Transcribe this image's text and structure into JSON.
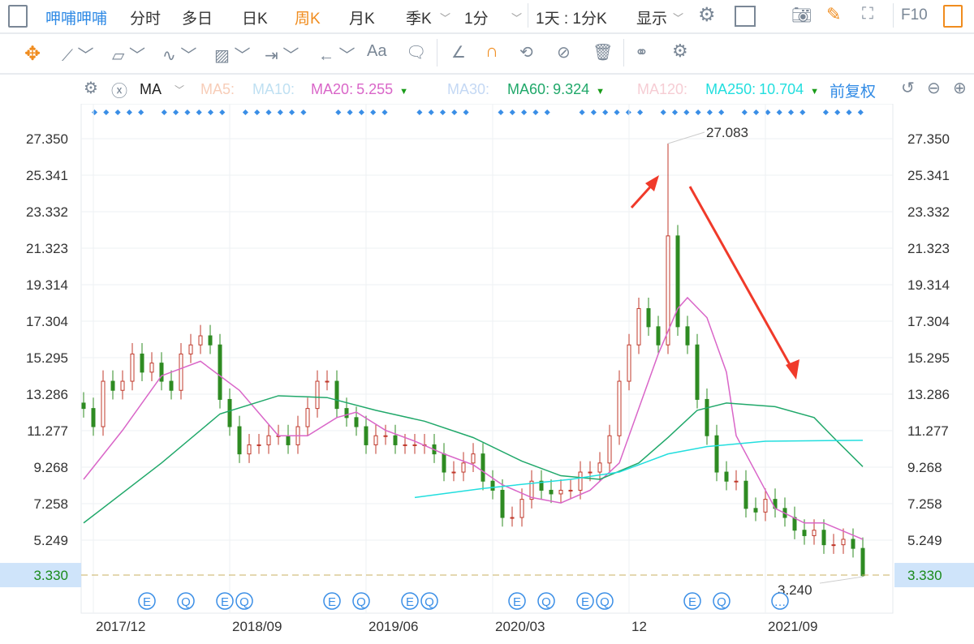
{
  "toolbar": {
    "stock_name": "呷哺呷哺",
    "tabs": [
      {
        "label": "分时"
      },
      {
        "label": "多日"
      },
      {
        "label": "日K"
      },
      {
        "label": "周K",
        "active": true
      },
      {
        "label": "月K"
      },
      {
        "label": "季K"
      }
    ],
    "minute_select": "1分",
    "period_select": "1天 : 1分K",
    "display_select": "显示",
    "f10": "F10",
    "active_color": "#f08c1e",
    "link_color": "#2f8ae5"
  },
  "drawing_tools": [
    "move-icon",
    "line-icon",
    "polygon-icon",
    "wave-icon",
    "fib-icon",
    "range-icon",
    "arrow-icon",
    "text-icon",
    "comment-icon",
    "angle-icon",
    "magnet-icon",
    "sync-icon",
    "hide-icon",
    "trash-icon",
    "overlay-icon",
    "settings-icon"
  ],
  "drawing_text_label": "Aa",
  "indicator": {
    "name": "MA",
    "items": [
      {
        "label": "MA5:",
        "value": "",
        "color": "#f7cdb8"
      },
      {
        "label": "MA10:",
        "value": "",
        "color": "#bfe0f2"
      },
      {
        "label": "MA20:",
        "value": "5.255",
        "color": "#d966c8",
        "trend": "down"
      },
      {
        "label": "MA30:",
        "value": "",
        "color": "#c4d8f4"
      },
      {
        "label": "MA60:",
        "value": "9.324",
        "color": "#20a86a",
        "trend": "down"
      },
      {
        "label": "MA120:",
        "value": "",
        "color": "#f6cdd4"
      },
      {
        "label": "MA250:",
        "value": "10.704",
        "color": "#22dede"
      }
    ],
    "adjust": "前复权",
    "trend_marker": "▼"
  },
  "chart_data": {
    "type": "candlestick",
    "period": "weekly",
    "y_ticks": [
      "27.350",
      "25.341",
      "23.332",
      "21.323",
      "19.314",
      "17.304",
      "15.295",
      "13.286",
      "11.277",
      "9.268",
      "7.258",
      "5.249"
    ],
    "ylim": [
      3.0,
      28.5
    ],
    "x_ticks": [
      {
        "label": "2017/12",
        "index": 1
      },
      {
        "label": "2018/09",
        "index": 15
      },
      {
        "label": "2019/06",
        "index": 29
      },
      {
        "label": "2020/03",
        "index": 42
      },
      {
        "label": "12",
        "index": 56
      },
      {
        "label": "2021/09",
        "index": 70
      }
    ],
    "closes": [
      12.5,
      11.5,
      14,
      13.5,
      14,
      15.5,
      14.5,
      15,
      14,
      13.5,
      15.5,
      16,
      16.5,
      16,
      13,
      11.5,
      10,
      10.5,
      10.5,
      11,
      11,
      10.5,
      11.5,
      12.5,
      14,
      14,
      12.5,
      12,
      11.5,
      10.5,
      11,
      11,
      10.5,
      10.5,
      10.5,
      10.5,
      10,
      9,
      9,
      9.5,
      10,
      8.5,
      8,
      6.5,
      6.5,
      7.5,
      8.5,
      8,
      7.8,
      8,
      8,
      9,
      9,
      9.5,
      11,
      14,
      16,
      18,
      17,
      16,
      22,
      17,
      16,
      13,
      11,
      9,
      8.5,
      8.5,
      7,
      6.8,
      7.5,
      7,
      6.5,
      5.8,
      5.5,
      5.8,
      5,
      5,
      5.3,
      4.8,
      3.3
    ],
    "ma_series": [
      {
        "name": "MA20",
        "color": "#d966c8",
        "points": [
          [
            0,
            8.6
          ],
          [
            4,
            11.3
          ],
          [
            8,
            14.3
          ],
          [
            12,
            15.1
          ],
          [
            16,
            13.5
          ],
          [
            20,
            11
          ],
          [
            23,
            11
          ],
          [
            26,
            12
          ],
          [
            28,
            12.3
          ],
          [
            31,
            11.3
          ],
          [
            34,
            10.7
          ],
          [
            37,
            10
          ],
          [
            40,
            9.4
          ],
          [
            43,
            8.3
          ],
          [
            46,
            7.6
          ],
          [
            49,
            7.3
          ],
          [
            52,
            8
          ],
          [
            55,
            9.5
          ],
          [
            57,
            12.5
          ],
          [
            59,
            15.5
          ],
          [
            61,
            18
          ],
          [
            62,
            18.6
          ],
          [
            64,
            17.5
          ],
          [
            66,
            14.5
          ],
          [
            67,
            11
          ],
          [
            70,
            8
          ],
          [
            71,
            7
          ],
          [
            74,
            6.2
          ],
          [
            76,
            6.2
          ],
          [
            80,
            5.3
          ]
        ]
      },
      {
        "name": "MA60",
        "color": "#20a86a",
        "points": [
          [
            0,
            6.2
          ],
          [
            8,
            9.5
          ],
          [
            14,
            12.2
          ],
          [
            20,
            13.2
          ],
          [
            25,
            13.1
          ],
          [
            30,
            12.4
          ],
          [
            35,
            11.8
          ],
          [
            40,
            10.9
          ],
          [
            45,
            9.6
          ],
          [
            49,
            8.8
          ],
          [
            53,
            8.6
          ],
          [
            57,
            9.5
          ],
          [
            60,
            10.9
          ],
          [
            63,
            12.4
          ],
          [
            66,
            12.8
          ],
          [
            71,
            12.6
          ],
          [
            75,
            12
          ],
          [
            77,
            10.9
          ],
          [
            80,
            9.3
          ]
        ]
      },
      {
        "name": "MA250",
        "color": "#22dede",
        "points": [
          [
            34,
            7.6
          ],
          [
            41,
            8.1
          ],
          [
            50,
            8.6
          ],
          [
            55,
            9
          ],
          [
            60,
            10
          ],
          [
            64,
            10.4
          ],
          [
            70,
            10.7
          ],
          [
            80,
            10.75
          ]
        ]
      }
    ],
    "max_label": "27.083",
    "max_value": 27.083,
    "max_index": 60,
    "min_label": "3.240",
    "min_value": 3.24,
    "min_index": 80,
    "current_price": "3.330",
    "current_value": 3.33,
    "events": [
      {
        "t": "E",
        "i": 6
      },
      {
        "t": "Q",
        "i": 10
      },
      {
        "t": "E",
        "i": 14
      },
      {
        "t": "Q",
        "i": 16
      },
      {
        "t": "E",
        "i": 25
      },
      {
        "t": "Q",
        "i": 28
      },
      {
        "t": "E",
        "i": 33
      },
      {
        "t": "Q",
        "i": 35
      },
      {
        "t": "E",
        "i": 44
      },
      {
        "t": "Q",
        "i": 47
      },
      {
        "t": "E",
        "i": 51
      },
      {
        "t": "Q",
        "i": 53
      },
      {
        "t": "E",
        "i": 62
      },
      {
        "t": "Q",
        "i": 65
      },
      {
        "t": "…",
        "i": 71
      }
    ],
    "up_color": "#c0392b",
    "down_color": "#2e8b22"
  }
}
